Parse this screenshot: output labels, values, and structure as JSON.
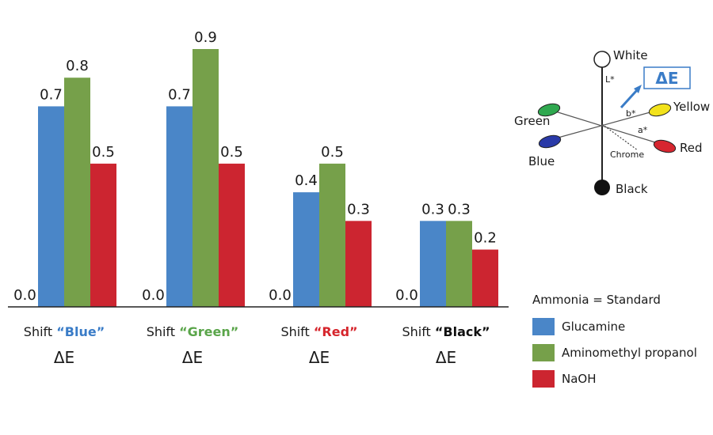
{
  "chart_data": {
    "type": "bar",
    "categories": [
      {
        "prefix": "Shift",
        "quoted": "“Blue”",
        "color": "#3a7cc7",
        "delta": "ΔE"
      },
      {
        "prefix": "Shift",
        "quoted": "“Green”",
        "color": "#5aa54a",
        "delta": "ΔE"
      },
      {
        "prefix": "Shift",
        "quoted": "“Red”",
        "color": "#d6252c",
        "delta": "ΔE"
      },
      {
        "prefix": "Shift",
        "quoted": "“Black”",
        "color": "#111111",
        "delta": "ΔE"
      }
    ],
    "series": [
      {
        "name": "Ammonia = Standard",
        "color": null,
        "values": [
          0.0,
          0.0,
          0.0,
          0.0
        ],
        "labels": [
          "0.0",
          "0.0",
          "0.0",
          "0.0"
        ]
      },
      {
        "name": "Glucamine",
        "color": "#4a86c8",
        "values": [
          0.7,
          0.7,
          0.4,
          0.3
        ],
        "labels": [
          "0.7",
          "0.7",
          "0.4",
          "0.3"
        ]
      },
      {
        "name": "Aminomethyl propanol",
        "color": "#76a04a",
        "values": [
          0.8,
          0.9,
          0.5,
          0.3
        ],
        "labels": [
          "0.8",
          "0.9",
          "0.5",
          "0.3"
        ]
      },
      {
        "name": "NaOH",
        "color": "#cc2530",
        "values": [
          0.5,
          0.5,
          0.3,
          0.2
        ],
        "labels": [
          "0.5",
          "0.5",
          "0.3",
          "0.2"
        ]
      }
    ],
    "ylim": [
      0,
      0.9
    ],
    "legend_title": "Ammonia = Standard",
    "legend_position": "bottom-right"
  },
  "diagram": {
    "white": "White",
    "black": "Black",
    "green": "Green",
    "blue": "Blue",
    "yellow": "Yellow",
    "red": "Red",
    "chrome": "Chrome",
    "l_axis": "L*",
    "a_axis": "a*",
    "b_axis": "b*",
    "delta": "ΔE",
    "colors": {
      "green": "#2fa84f",
      "blue": "#2a3aa8",
      "yellow": "#f2e21b",
      "red": "#d62630",
      "accent": "#3a7cc7"
    }
  }
}
